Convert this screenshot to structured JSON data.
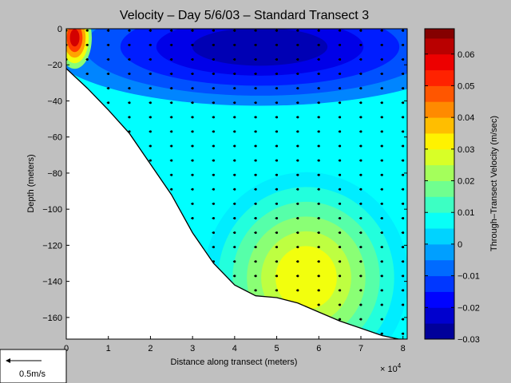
{
  "chart_data": {
    "type": "heatmap",
    "title": "Velocity – Day 5/6/03 – Standard Transect 3",
    "xlabel": "Distance along transect (meters)",
    "ylabel": "Depth (meters)",
    "x_exponent_label": "× 10",
    "x_exponent": "4",
    "xlim": [
      0,
      8.1
    ],
    "ylim": [
      -172,
      0
    ],
    "x_ticks": [
      0,
      1,
      2,
      3,
      4,
      5,
      6,
      7,
      8
    ],
    "y_ticks": [
      0,
      -20,
      -40,
      -60,
      -80,
      -100,
      -120,
      -140,
      -160
    ],
    "colorbar": {
      "label": "Through–Transect Velocity (m/sec)",
      "range": [
        -0.03,
        0.068
      ],
      "ticks": [
        "0.06",
        "0.05",
        "0.04",
        "0.03",
        "0.02",
        "0.01",
        "0",
        "−0.01",
        "−0.02",
        "−0.03"
      ],
      "tick_values": [
        0.06,
        0.05,
        0.04,
        0.03,
        0.02,
        0.01,
        0,
        -0.01,
        -0.02,
        -0.03
      ]
    },
    "bottom_profile": {
      "x": [
        0,
        0.5,
        1.0,
        1.5,
        2.0,
        2.5,
        3.0,
        3.5,
        4.0,
        4.5,
        5.0,
        5.5,
        6.0,
        6.5,
        7.0,
        7.5,
        7.9,
        8.1
      ],
      "depth": [
        -22,
        -33,
        -45,
        -58,
        -75,
        -92,
        -113,
        -130,
        -142,
        -148,
        -149,
        -152,
        -157,
        -162,
        -166,
        -170,
        -172,
        -172
      ]
    },
    "core_negative": {
      "x": 4.6,
      "depth": -10,
      "value": -0.028
    },
    "core_positive": {
      "x": 5.7,
      "depth": -138,
      "value": 0.033
    },
    "core_nearshore": {
      "x": 0.2,
      "depth": -5,
      "value": 0.065
    },
    "legend": {
      "scale_label": "0.5m/s",
      "placement": "bottom-left"
    }
  }
}
